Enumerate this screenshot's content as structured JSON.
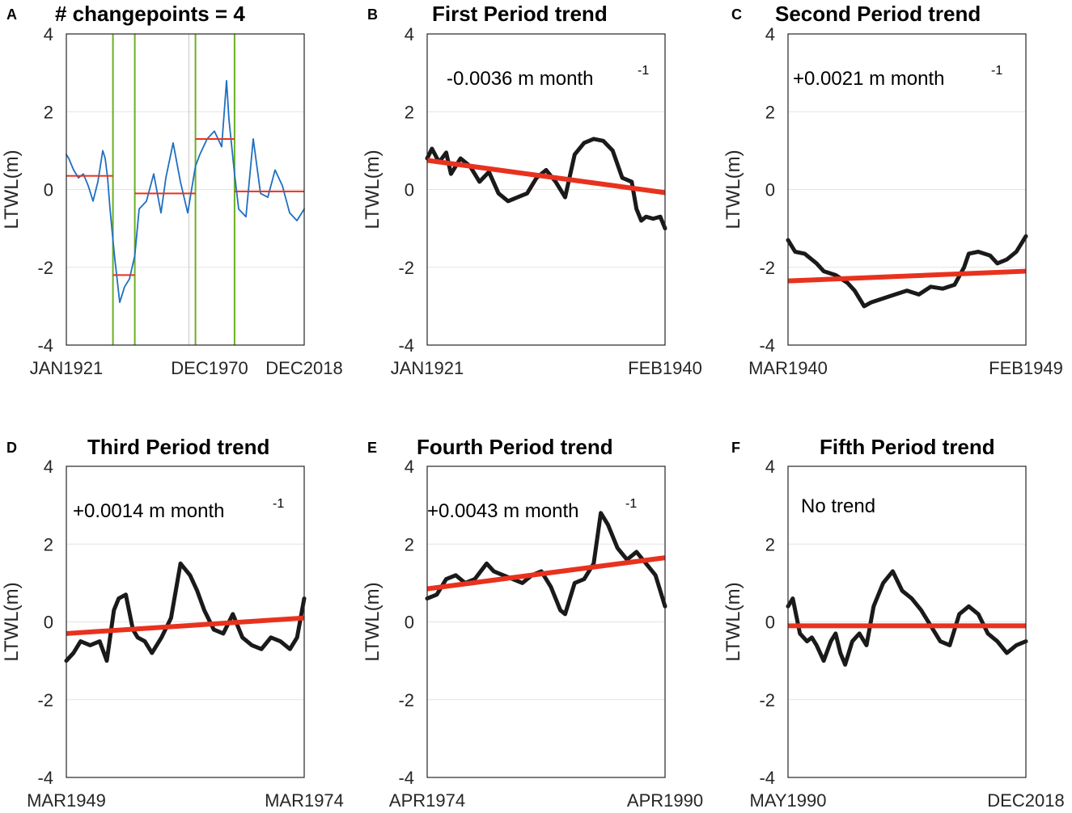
{
  "figure": {
    "ylabel": "LTWL(m)"
  },
  "colors": {
    "series_blue": "#1f6fc1",
    "series_black": "#1a1a1a",
    "trend_red": "#e8321e",
    "changepoint_green": "#6ab023",
    "grid": "#e3e3e3"
  },
  "chart_data": [
    {
      "letter": "A",
      "type": "line",
      "title": "# changepoints = 4",
      "xlabels": [
        "JAN1921",
        "DEC1970",
        "DEC2018"
      ],
      "ylim": [
        -4,
        4
      ],
      "yticks": [
        4,
        2,
        0,
        -2,
        -4
      ],
      "ylabel": "LTWL(m)",
      "xlim": [
        1921,
        2019
      ],
      "changepoints": [
        1940.2,
        1949.2,
        1974.2,
        1990.3
      ],
      "segment_means": [
        {
          "x0": 1921,
          "x1": 1940.2,
          "y": 0.35
        },
        {
          "x0": 1940.2,
          "x1": 1949.2,
          "y": -2.2
        },
        {
          "x0": 1949.2,
          "x1": 1974.2,
          "y": -0.1
        },
        {
          "x0": 1974.2,
          "x1": 1990.3,
          "y": 1.3
        },
        {
          "x0": 1990.3,
          "x1": 2019,
          "y": -0.05
        }
      ],
      "series": [
        {
          "name": "LTWL",
          "x": [
            1921,
            1922,
            1924,
            1926,
            1928,
            1930,
            1932,
            1934,
            1936,
            1937,
            1938,
            1939,
            1940.2,
            1941,
            1943,
            1945,
            1947,
            1949.2,
            1951,
            1954,
            1957,
            1960,
            1962,
            1965,
            1968,
            1971,
            1974.2,
            1976,
            1979,
            1982,
            1985,
            1987,
            1988,
            1990.3,
            1992,
            1995,
            1998,
            2001,
            2004,
            2007,
            2010,
            2013,
            2016,
            2019
          ],
          "y": [
            0.9,
            0.8,
            0.5,
            0.3,
            0.4,
            0.1,
            -0.3,
            0.2,
            1.0,
            0.8,
            0.3,
            -0.5,
            -1.3,
            -1.8,
            -2.9,
            -2.5,
            -2.3,
            -1.7,
            -0.5,
            -0.3,
            0.4,
            -0.6,
            0.3,
            1.2,
            0.2,
            -0.6,
            0.6,
            0.9,
            1.3,
            1.5,
            1.1,
            2.8,
            1.8,
            0.4,
            -0.5,
            -0.7,
            1.3,
            -0.1,
            -0.2,
            0.5,
            0.1,
            -0.6,
            -0.8,
            -0.5
          ]
        }
      ]
    },
    {
      "letter": "B",
      "type": "line",
      "title": "First Period trend",
      "xlabels": [
        "JAN1921",
        "FEB1940"
      ],
      "ylim": [
        -4,
        4
      ],
      "yticks": [
        4,
        2,
        0,
        -2,
        -4
      ],
      "ylabel": "LTWL(m)",
      "annotation": "-0.0036 m month",
      "annotation_sup": "-1",
      "trend": {
        "start": 0.75,
        "end": -0.08
      },
      "series": [
        {
          "name": "LTWL",
          "x": [
            0,
            0.02,
            0.05,
            0.08,
            0.1,
            0.14,
            0.18,
            0.22,
            0.26,
            0.3,
            0.34,
            0.38,
            0.42,
            0.46,
            0.5,
            0.54,
            0.58,
            0.62,
            0.66,
            0.7,
            0.74,
            0.78,
            0.82,
            0.86,
            0.88,
            0.9,
            0.92,
            0.95,
            0.98,
            1.0
          ],
          "y": [
            0.8,
            1.05,
            0.7,
            0.95,
            0.4,
            0.8,
            0.6,
            0.2,
            0.45,
            -0.1,
            -0.3,
            -0.2,
            -0.1,
            0.3,
            0.5,
            0.2,
            -0.2,
            0.9,
            1.2,
            1.3,
            1.25,
            1.0,
            0.3,
            0.2,
            -0.5,
            -0.8,
            -0.7,
            -0.75,
            -0.7,
            -1.0
          ]
        }
      ]
    },
    {
      "letter": "C",
      "type": "line",
      "title": "Second Period trend",
      "xlabels": [
        "MAR1940",
        "FEB1949"
      ],
      "ylim": [
        -4,
        4
      ],
      "yticks": [
        4,
        2,
        0,
        -2,
        -4
      ],
      "ylabel": "LTWL(m)",
      "annotation": "+0.0021 m month",
      "annotation_sup": "-1",
      "trend": {
        "start": -2.35,
        "end": -2.1
      },
      "series": [
        {
          "name": "LTWL",
          "x": [
            0,
            0.03,
            0.07,
            0.12,
            0.15,
            0.2,
            0.25,
            0.28,
            0.32,
            0.35,
            0.4,
            0.45,
            0.5,
            0.55,
            0.6,
            0.65,
            0.7,
            0.74,
            0.76,
            0.8,
            0.85,
            0.88,
            0.92,
            0.96,
            1.0
          ],
          "y": [
            -1.3,
            -1.6,
            -1.65,
            -1.9,
            -2.1,
            -2.2,
            -2.4,
            -2.6,
            -3.0,
            -2.9,
            -2.8,
            -2.7,
            -2.6,
            -2.7,
            -2.5,
            -2.55,
            -2.45,
            -2.0,
            -1.65,
            -1.6,
            -1.7,
            -1.9,
            -1.8,
            -1.6,
            -1.2
          ]
        }
      ]
    },
    {
      "letter": "D",
      "type": "line",
      "title": "Third Period trend",
      "xlabels": [
        "MAR1949",
        "MAR1974"
      ],
      "ylim": [
        -4,
        4
      ],
      "yticks": [
        4,
        2,
        0,
        -2,
        -4
      ],
      "ylabel": "LTWL(m)",
      "annotation": "+0.0014 m month",
      "annotation_sup": "-1",
      "trend": {
        "start": -0.3,
        "end": 0.1
      },
      "series": [
        {
          "name": "LTWL",
          "x": [
            0,
            0.03,
            0.06,
            0.1,
            0.14,
            0.17,
            0.2,
            0.22,
            0.25,
            0.28,
            0.3,
            0.33,
            0.36,
            0.4,
            0.44,
            0.48,
            0.52,
            0.55,
            0.58,
            0.62,
            0.66,
            0.7,
            0.74,
            0.78,
            0.82,
            0.86,
            0.9,
            0.94,
            0.97,
            1.0
          ],
          "y": [
            -1.0,
            -0.8,
            -0.5,
            -0.6,
            -0.5,
            -1.0,
            0.3,
            0.6,
            0.7,
            -0.2,
            -0.4,
            -0.5,
            -0.8,
            -0.4,
            0.1,
            1.5,
            1.2,
            0.8,
            0.3,
            -0.2,
            -0.3,
            0.2,
            -0.4,
            -0.6,
            -0.7,
            -0.4,
            -0.5,
            -0.7,
            -0.4,
            0.6
          ]
        }
      ]
    },
    {
      "letter": "E",
      "type": "line",
      "title": "Fourth Period trend",
      "xlabels": [
        "APR1974",
        "APR1990"
      ],
      "ylim": [
        -4,
        4
      ],
      "yticks": [
        4,
        2,
        0,
        -2,
        -4
      ],
      "ylabel": "LTWL(m)",
      "annotation": "+0.0043 m month",
      "annotation_sup": "-1",
      "trend": {
        "start": 0.85,
        "end": 1.65
      },
      "series": [
        {
          "name": "LTWL",
          "x": [
            0,
            0.04,
            0.08,
            0.12,
            0.16,
            0.2,
            0.25,
            0.28,
            0.32,
            0.36,
            0.4,
            0.44,
            0.48,
            0.52,
            0.56,
            0.58,
            0.62,
            0.66,
            0.7,
            0.73,
            0.76,
            0.8,
            0.84,
            0.88,
            0.92,
            0.96,
            1.0
          ],
          "y": [
            0.6,
            0.7,
            1.1,
            1.2,
            1.0,
            1.1,
            1.5,
            1.3,
            1.2,
            1.1,
            1.0,
            1.2,
            1.3,
            0.9,
            0.3,
            0.2,
            1.0,
            1.1,
            1.5,
            2.8,
            2.5,
            1.9,
            1.6,
            1.8,
            1.5,
            1.2,
            0.4
          ]
        }
      ]
    },
    {
      "letter": "F",
      "type": "line",
      "title": "Fifth Period trend",
      "xlabels": [
        "MAY1990",
        "DEC2018"
      ],
      "ylim": [
        -4,
        4
      ],
      "yticks": [
        4,
        2,
        0,
        -2,
        -4
      ],
      "ylabel": "LTWL(m)",
      "annotation": "No trend",
      "trend": {
        "start": -0.1,
        "end": -0.1
      },
      "series": [
        {
          "name": "LTWL",
          "x": [
            0,
            0.02,
            0.05,
            0.08,
            0.1,
            0.12,
            0.15,
            0.18,
            0.2,
            0.22,
            0.24,
            0.27,
            0.3,
            0.33,
            0.36,
            0.4,
            0.44,
            0.48,
            0.52,
            0.56,
            0.6,
            0.64,
            0.68,
            0.72,
            0.76,
            0.8,
            0.84,
            0.88,
            0.92,
            0.96,
            1.0
          ],
          "y": [
            0.4,
            0.6,
            -0.3,
            -0.5,
            -0.4,
            -0.6,
            -1.0,
            -0.5,
            -0.3,
            -0.8,
            -1.1,
            -0.5,
            -0.3,
            -0.6,
            0.4,
            1.0,
            1.3,
            0.8,
            0.6,
            0.3,
            -0.1,
            -0.5,
            -0.6,
            0.2,
            0.4,
            0.2,
            -0.3,
            -0.5,
            -0.8,
            -0.6,
            -0.5
          ]
        }
      ]
    }
  ]
}
